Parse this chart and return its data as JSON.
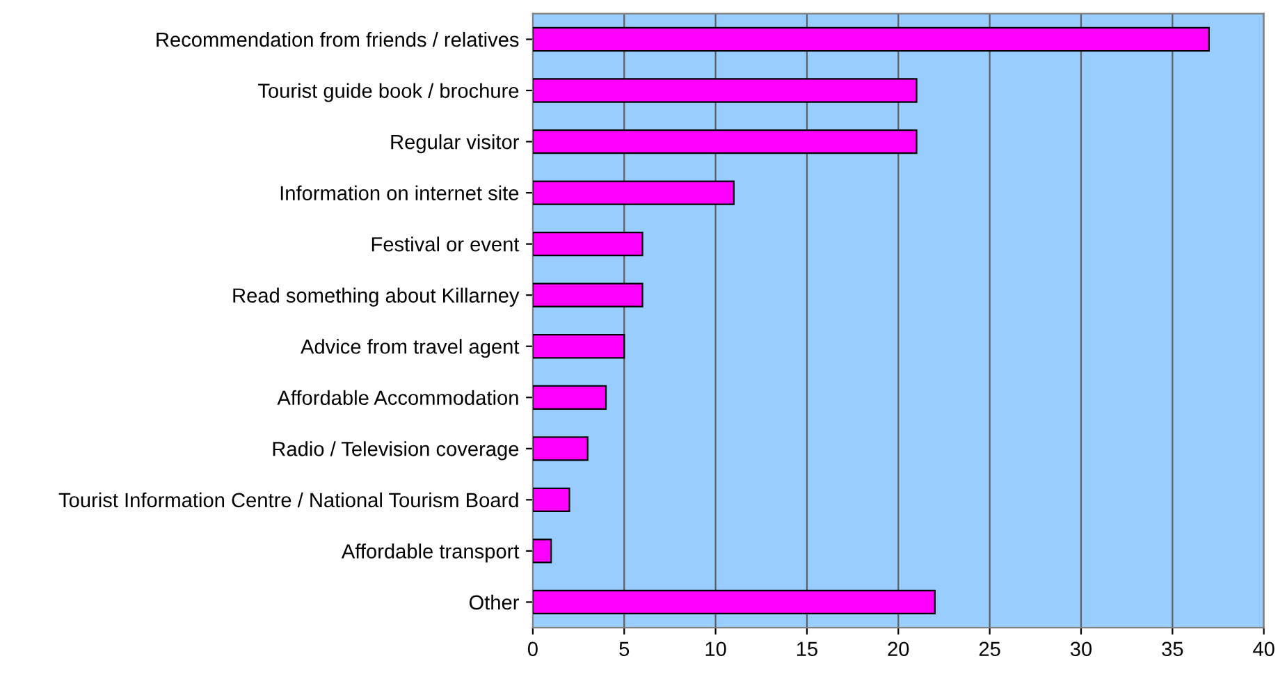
{
  "chart_data": {
    "type": "bar",
    "orientation": "horizontal",
    "categories": [
      "Recommendation from friends / relatives",
      "Tourist guide book / brochure",
      "Regular visitor",
      "Information on internet site",
      "Festival or event",
      "Read something about Killarney",
      "Advice from travel agent",
      "Affordable Accommodation",
      "Radio / Television coverage",
      "Tourist Information Centre / National Tourism Board",
      "Affordable transport",
      "Other"
    ],
    "values": [
      37,
      21,
      21,
      11,
      6,
      6,
      5,
      4,
      3,
      2,
      1,
      22
    ],
    "color": "#ff00ff",
    "xlim": [
      0,
      40
    ],
    "xticks": [
      0,
      5,
      10,
      15,
      20,
      25,
      30,
      35,
      40
    ],
    "grid": "x"
  }
}
